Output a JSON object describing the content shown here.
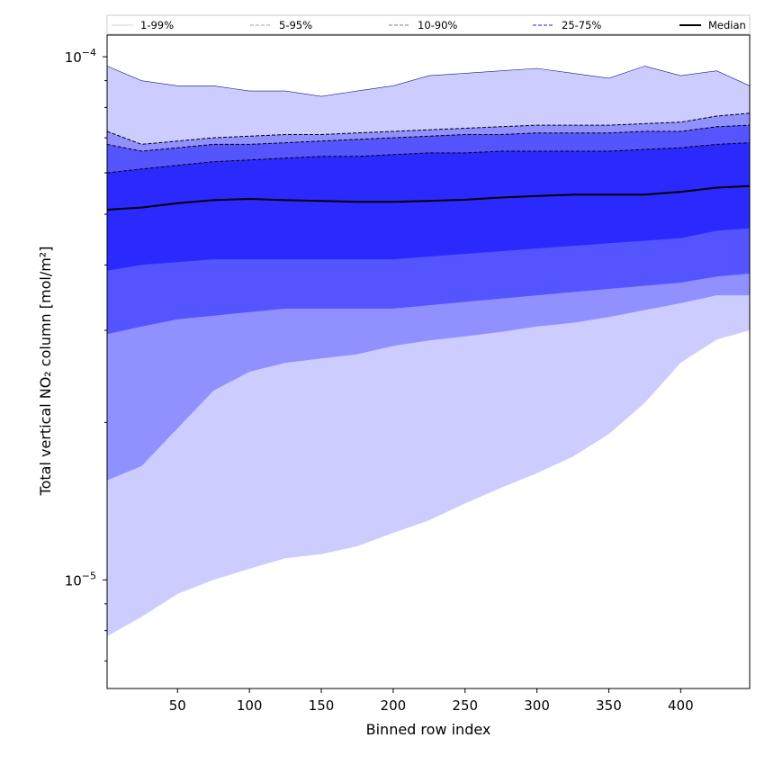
{
  "chart_data": {
    "type": "area",
    "xlabel": "Binned row index",
    "ylabel": "Total vertical NO₂ column [mol/m²]",
    "y_scale": "log",
    "xlim": [
      1,
      448
    ],
    "ylim": [
      6.2e-06,
      0.00011
    ],
    "x_ticks": [
      50,
      100,
      150,
      200,
      250,
      300,
      350,
      400
    ],
    "y_ticks": [
      {
        "value": 1e-05,
        "label": "10",
        "exp": "−5"
      },
      {
        "value": 0.0001,
        "label": "10",
        "exp": "−4"
      }
    ],
    "legend_position": "top",
    "legend": [
      {
        "label": "1-99%",
        "style": "solid",
        "color": "#d9d9e8"
      },
      {
        "label": "5-95%",
        "style": "dashed",
        "color": "#b0b0dd"
      },
      {
        "label": "10-90%",
        "style": "dashed",
        "color": "#8a8ae8"
      },
      {
        "label": "25-75%",
        "style": "dashed",
        "color": "#4a4ae0"
      },
      {
        "label": "Median",
        "style": "solid",
        "color": "#000000"
      }
    ],
    "x": [
      1,
      25,
      50,
      75,
      100,
      125,
      150,
      175,
      200,
      225,
      250,
      275,
      300,
      325,
      350,
      375,
      400,
      425,
      448
    ],
    "bands": [
      {
        "name": "1-99%",
        "fill": "#ccccff",
        "upper": [
          9.6e-05,
          9e-05,
          8.8e-05,
          8.8e-05,
          8.6e-05,
          8.6e-05,
          8.4e-05,
          8.6e-05,
          8.8e-05,
          9.2e-05,
          9.3e-05,
          9.4e-05,
          9.5e-05,
          9.3e-05,
          9.1e-05,
          9.6e-05,
          9.2e-05,
          9.4e-05,
          8.8e-05
        ],
        "lower": [
          7.8e-06,
          8.5e-06,
          9.4e-06,
          1e-05,
          1.05e-05,
          1.1e-05,
          1.12e-05,
          1.16e-05,
          1.23e-05,
          1.3e-05,
          1.4e-05,
          1.5e-05,
          1.6e-05,
          1.72e-05,
          1.9e-05,
          2.18e-05,
          2.6e-05,
          2.88e-05,
          3e-05
        ]
      },
      {
        "name": "5-95%",
        "fill": "#9090ff",
        "upper": [
          7.2e-05,
          6.8e-05,
          6.9e-05,
          7e-05,
          7.05e-05,
          7.1e-05,
          7.1e-05,
          7.15e-05,
          7.2e-05,
          7.25e-05,
          7.3e-05,
          7.35e-05,
          7.4e-05,
          7.4e-05,
          7.4e-05,
          7.45e-05,
          7.5e-05,
          7.7e-05,
          7.8e-05
        ],
        "lower": [
          1.55e-05,
          1.65e-05,
          1.95e-05,
          2.3e-05,
          2.5e-05,
          2.6e-05,
          2.65e-05,
          2.7e-05,
          2.8e-05,
          2.87e-05,
          2.92e-05,
          2.98e-05,
          3.05e-05,
          3.1e-05,
          3.18e-05,
          3.28e-05,
          3.38e-05,
          3.5e-05,
          3.5e-05
        ]
      },
      {
        "name": "10-90%",
        "fill": "#5555ff",
        "upper": [
          6.8e-05,
          6.6e-05,
          6.7e-05,
          6.8e-05,
          6.8e-05,
          6.85e-05,
          6.9e-05,
          6.95e-05,
          7e-05,
          7.05e-05,
          7.1e-05,
          7.1e-05,
          7.15e-05,
          7.15e-05,
          7.15e-05,
          7.2e-05,
          7.2e-05,
          7.35e-05,
          7.4e-05
        ],
        "lower": [
          2.95e-05,
          3.05e-05,
          3.15e-05,
          3.2e-05,
          3.25e-05,
          3.3e-05,
          3.3e-05,
          3.3e-05,
          3.3e-05,
          3.35e-05,
          3.4e-05,
          3.45e-05,
          3.5e-05,
          3.55e-05,
          3.6e-05,
          3.65e-05,
          3.7e-05,
          3.8e-05,
          3.85e-05
        ]
      },
      {
        "name": "25-75%",
        "fill": "#2a2aff",
        "upper": [
          6e-05,
          6.1e-05,
          6.2e-05,
          6.3e-05,
          6.35e-05,
          6.4e-05,
          6.45e-05,
          6.45e-05,
          6.5e-05,
          6.55e-05,
          6.55e-05,
          6.6e-05,
          6.6e-05,
          6.6e-05,
          6.6e-05,
          6.65e-05,
          6.7e-05,
          6.8e-05,
          6.85e-05
        ],
        "lower": [
          3.9e-05,
          4e-05,
          4.05e-05,
          4.1e-05,
          4.1e-05,
          4.1e-05,
          4.1e-05,
          4.1e-05,
          4.1e-05,
          4.15e-05,
          4.2e-05,
          4.25e-05,
          4.3e-05,
          4.35e-05,
          4.4e-05,
          4.45e-05,
          4.5e-05,
          4.65e-05,
          4.7e-05
        ]
      }
    ],
    "series": [
      {
        "name": "Median",
        "color": "#000000",
        "values": [
          5.1e-05,
          5.15e-05,
          5.25e-05,
          5.32e-05,
          5.35e-05,
          5.32e-05,
          5.3e-05,
          5.28e-05,
          5.28e-05,
          5.3e-05,
          5.33e-05,
          5.38e-05,
          5.42e-05,
          5.45e-05,
          5.45e-05,
          5.45e-05,
          5.52e-05,
          5.62e-05,
          5.66e-05
        ]
      }
    ]
  }
}
